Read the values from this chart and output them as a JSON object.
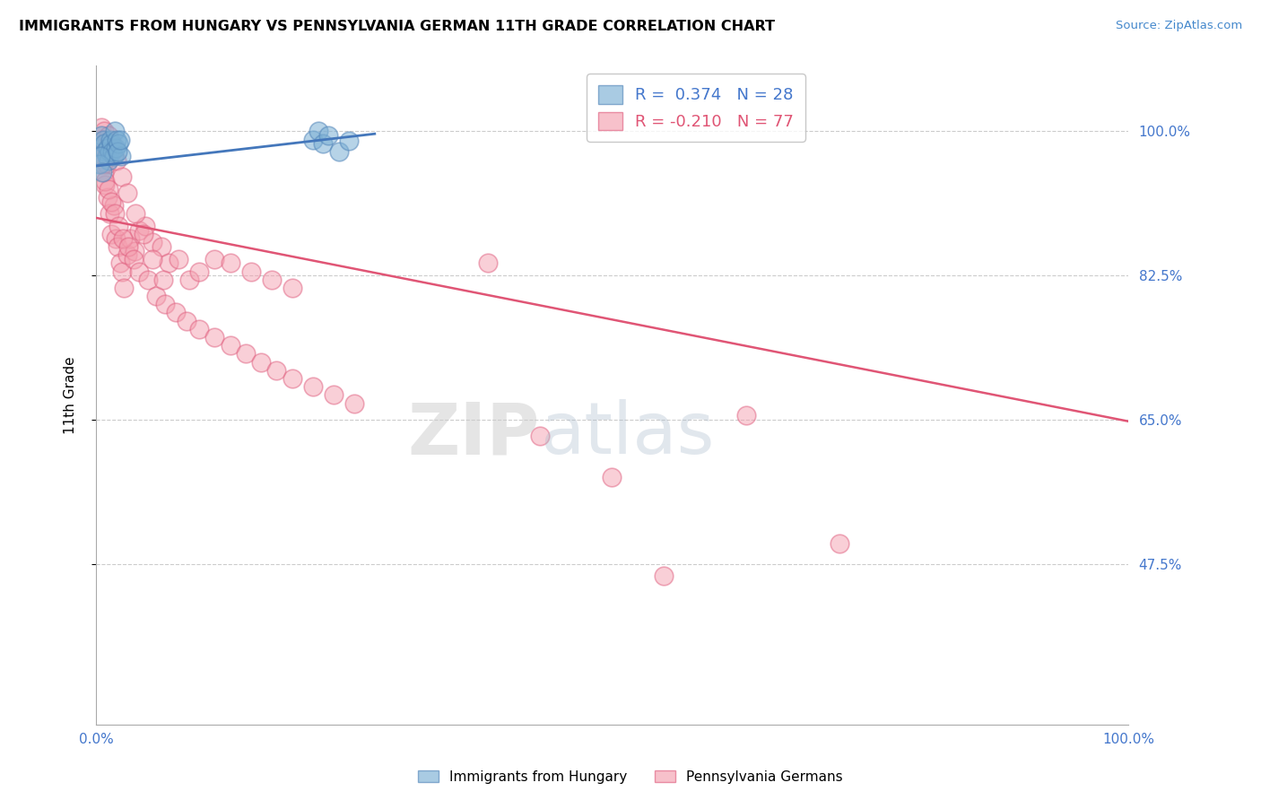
{
  "title": "IMMIGRANTS FROM HUNGARY VS PENNSYLVANIA GERMAN 11TH GRADE CORRELATION CHART",
  "source": "Source: ZipAtlas.com",
  "ylabel": "11th Grade",
  "legend_label1": "Immigrants from Hungary",
  "legend_label2": "Pennsylvania Germans",
  "R1": 0.374,
  "N1": 28,
  "R2": -0.21,
  "N2": 77,
  "blue_color": "#7BAFD4",
  "pink_color": "#F4A0B0",
  "blue_edge_color": "#5588BB",
  "pink_edge_color": "#E06080",
  "blue_line_color": "#4477BB",
  "pink_line_color": "#E05575",
  "xlim": [
    0.0,
    1.0
  ],
  "ylim": [
    0.28,
    1.08
  ],
  "ytick_vals": [
    0.475,
    0.65,
    0.825,
    1.0
  ],
  "ytick_labels": [
    "47.5%",
    "65.0%",
    "82.5%",
    "100.0%"
  ],
  "xtick_vals": [
    0.0,
    1.0
  ],
  "xtick_labels": [
    "0.0%",
    "100.0%"
  ],
  "blue_trend_x": [
    0.0,
    0.27
  ],
  "blue_trend_y": [
    0.958,
    0.997
  ],
  "pink_trend_x": [
    0.0,
    1.0
  ],
  "pink_trend_y": [
    0.895,
    0.648
  ],
  "blue_scatter_x": [
    0.005,
    0.007,
    0.008,
    0.009,
    0.01,
    0.011,
    0.012,
    0.013,
    0.014,
    0.015,
    0.016,
    0.017,
    0.018,
    0.019,
    0.02,
    0.022,
    0.024,
    0.003,
    0.004,
    0.006,
    0.021,
    0.023,
    0.21,
    0.215,
    0.22,
    0.225,
    0.235,
    0.245
  ],
  "blue_scatter_y": [
    0.995,
    0.99,
    0.985,
    0.975,
    0.97,
    0.98,
    0.965,
    0.975,
    0.99,
    0.985,
    0.975,
    0.97,
    1.0,
    0.98,
    0.99,
    0.985,
    0.97,
    0.96,
    0.97,
    0.95,
    0.975,
    0.99,
    0.99,
    1.0,
    0.985,
    0.995,
    0.975,
    0.988
  ],
  "pink_scatter_x": [
    0.004,
    0.006,
    0.008,
    0.009,
    0.01,
    0.011,
    0.013,
    0.015,
    0.017,
    0.019,
    0.021,
    0.023,
    0.025,
    0.027,
    0.03,
    0.033,
    0.037,
    0.042,
    0.048,
    0.055,
    0.063,
    0.07,
    0.08,
    0.09,
    0.1,
    0.115,
    0.13,
    0.15,
    0.17,
    0.19,
    0.005,
    0.007,
    0.009,
    0.012,
    0.015,
    0.018,
    0.022,
    0.026,
    0.031,
    0.036,
    0.042,
    0.05,
    0.058,
    0.067,
    0.077,
    0.088,
    0.1,
    0.115,
    0.13,
    0.145,
    0.16,
    0.175,
    0.19,
    0.21,
    0.23,
    0.25,
    0.005,
    0.008,
    0.012,
    0.016,
    0.02,
    0.025,
    0.03,
    0.038,
    0.046,
    0.055,
    0.065,
    0.38,
    0.43,
    0.5,
    0.55,
    0.63,
    0.72
  ],
  "pink_scatter_y": [
    0.99,
    0.97,
    0.95,
    0.935,
    0.96,
    0.92,
    0.9,
    0.875,
    0.91,
    0.87,
    0.86,
    0.84,
    0.83,
    0.81,
    0.85,
    0.87,
    0.855,
    0.88,
    0.885,
    0.865,
    0.86,
    0.84,
    0.845,
    0.82,
    0.83,
    0.845,
    0.84,
    0.83,
    0.82,
    0.81,
    0.98,
    0.96,
    0.94,
    0.93,
    0.915,
    0.9,
    0.885,
    0.87,
    0.86,
    0.845,
    0.83,
    0.82,
    0.8,
    0.79,
    0.78,
    0.77,
    0.76,
    0.75,
    0.74,
    0.73,
    0.72,
    0.71,
    0.7,
    0.69,
    0.68,
    0.67,
    1.005,
    1.0,
    0.995,
    0.985,
    0.965,
    0.945,
    0.925,
    0.9,
    0.875,
    0.845,
    0.82,
    0.84,
    0.63,
    0.58,
    0.46,
    0.655,
    0.5
  ],
  "watermark_text": "ZIP",
  "watermark_text2": "atlas",
  "background_color": "#FFFFFF"
}
